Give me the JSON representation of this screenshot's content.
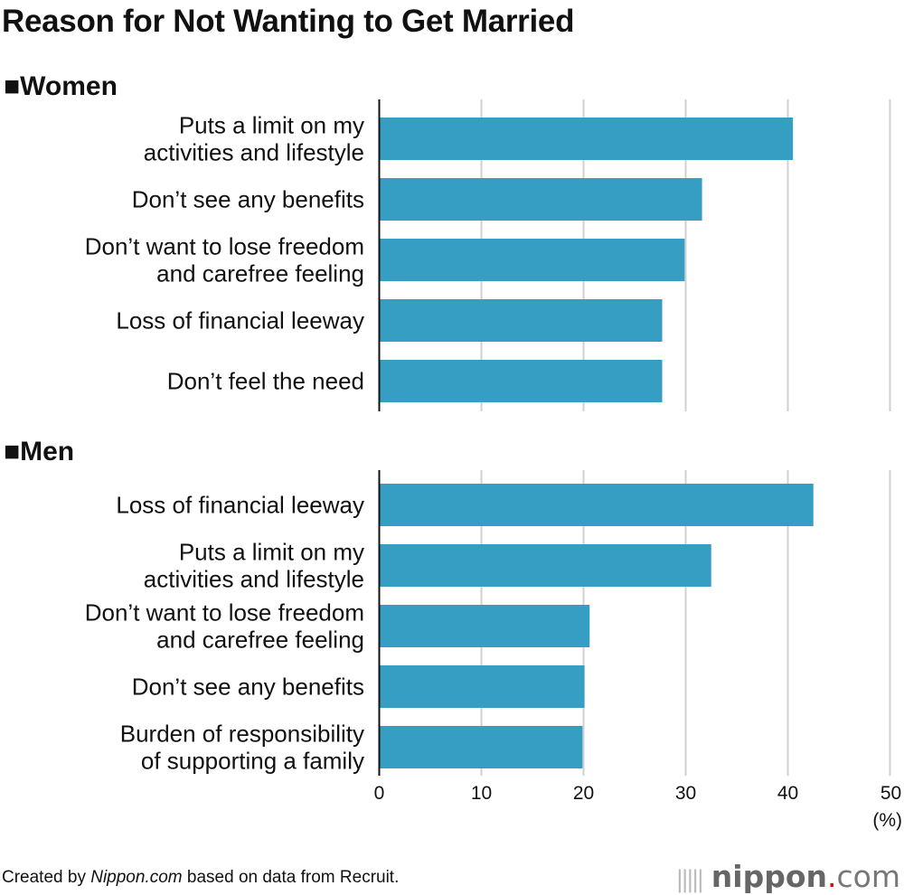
{
  "chart_data": {
    "type": "bar",
    "orientation": "horizontal",
    "title": "Reason for Not Wanting to Get Married",
    "xlim": [
      0,
      50
    ],
    "xticks": [
      "0",
      "10",
      "20",
      "30",
      "40",
      "50"
    ],
    "xunit": "(%)",
    "grid": true,
    "bar_color": "#369dc3",
    "panels": [
      {
        "name": "■Women",
        "categories": [
          [
            "Puts a limit on my",
            "activities and lifestyle"
          ],
          [
            "Don’t see any benefits"
          ],
          [
            "Don’t want to lose freedom",
            "and carefree feeling"
          ],
          [
            "Loss of financial leeway"
          ],
          [
            "Don’t feel the need"
          ]
        ],
        "values": [
          40.5,
          31.6,
          29.9,
          27.7,
          27.7
        ]
      },
      {
        "name": "■Men",
        "categories": [
          [
            "Loss of financial leeway"
          ],
          [
            "Puts a limit on my",
            "activities and lifestyle"
          ],
          [
            "Don’t want to lose freedom",
            "and carefree feeling"
          ],
          [
            "Don’t see any benefits"
          ],
          [
            "Burden of responsibility",
            "of supporting a family"
          ]
        ],
        "values": [
          42.5,
          32.5,
          20.6,
          20.1,
          19.9
        ]
      }
    ]
  },
  "footer": {
    "prefix": "Created by ",
    "site": "Nippon.com",
    "suffix": " based on data from Recruit."
  },
  "logo": {
    "text": "nippon.com"
  }
}
